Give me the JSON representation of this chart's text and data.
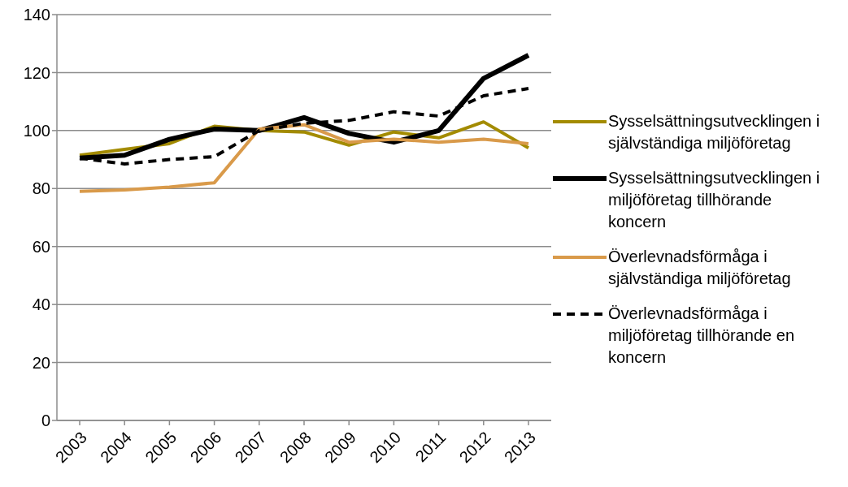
{
  "chart_data": {
    "type": "line",
    "categories": [
      "2003",
      "2004",
      "2005",
      "2006",
      "2007",
      "2008",
      "2009",
      "2010",
      "2011",
      "2012",
      "2013"
    ],
    "series": [
      {
        "name": "Sysselsättningsutvecklingen i självständiga miljöföretag",
        "color": "#a38b00",
        "values": [
          91.5,
          93.5,
          95.5,
          101.5,
          100,
          99.5,
          95,
          99.5,
          97.5,
          103,
          94
        ]
      },
      {
        "name": "Sysselsättningsutvecklingen i miljöföretag tillhörande koncern",
        "color": "#000000",
        "values": [
          90.5,
          91.5,
          97,
          100.5,
          100,
          104.5,
          99,
          96,
          100,
          118,
          126
        ]
      },
      {
        "name": "Överlevnadsförmåga i självständiga miljöföretag",
        "color": "#d99a4a",
        "values": [
          79,
          79.5,
          80.5,
          82,
          100.5,
          102,
          96,
          97,
          96,
          97,
          95.5
        ]
      },
      {
        "name": "Överlevnadsförmåga i miljöföretag tillhörande en koncern",
        "color": "#000000",
        "line_style": "dashed",
        "values": [
          90.5,
          88.5,
          90,
          91,
          100,
          102.5,
          103.5,
          106.5,
          105,
          112,
          114.5
        ]
      }
    ],
    "ylim": [
      0,
      140
    ],
    "yticks": [
      0,
      20,
      40,
      60,
      80,
      100,
      120,
      140
    ],
    "grid": "y",
    "legend": "right",
    "marker": "none"
  }
}
